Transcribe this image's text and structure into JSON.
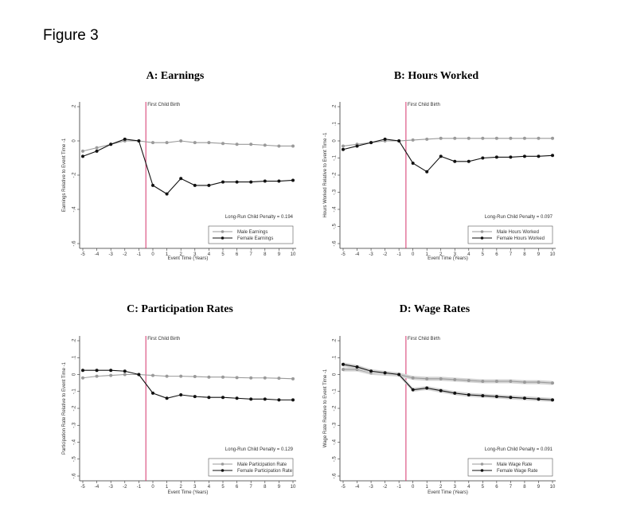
{
  "figure_label": "Figure 3",
  "colors": {
    "male": "#9a9a9a",
    "female": "#111111",
    "event_line": "#d6336c",
    "band": "#d4d4d4"
  },
  "chart_data": [
    {
      "type": "line",
      "title": "A: Earnings",
      "xlabel": "Event Time (Years)",
      "ylabel": "Earnings Relative to Event Time -1",
      "x": [
        -5,
        -4,
        -3,
        -2,
        -1,
        0,
        1,
        2,
        3,
        4,
        5,
        6,
        7,
        8,
        9,
        10
      ],
      "ylim": [
        -0.6,
        0.2
      ],
      "yticks": [
        ".2",
        "0",
        "-.2",
        "-.4",
        "-.6"
      ],
      "event_label": "First Child Birth",
      "penalty_label": "Long-Run Child Penalty = 0.194",
      "series": [
        {
          "name": "Male Earnings",
          "values": [
            -0.06,
            -0.04,
            -0.02,
            0.0,
            0.0,
            -0.01,
            -0.01,
            0.0,
            -0.01,
            -0.01,
            -0.015,
            -0.02,
            -0.02,
            -0.025,
            -0.03,
            -0.03
          ]
        },
        {
          "name": "Female Earnings",
          "values": [
            -0.09,
            -0.06,
            -0.02,
            0.01,
            0.0,
            -0.26,
            -0.31,
            -0.22,
            -0.26,
            -0.26,
            -0.24,
            -0.24,
            -0.24,
            -0.235,
            -0.235,
            -0.23
          ]
        }
      ]
    },
    {
      "type": "line",
      "title": "B: Hours Worked",
      "xlabel": "Event Time (Years)",
      "ylabel": "Hours Worked Relative to Event Time -1",
      "x": [
        -5,
        -4,
        -3,
        -2,
        -1,
        0,
        1,
        2,
        3,
        4,
        5,
        6,
        7,
        8,
        9,
        10
      ],
      "ylim": [
        -0.6,
        0.2
      ],
      "yticks": [
        ".2",
        ".1",
        "0",
        "-.1",
        "-.2",
        "-.3",
        "-.4",
        "-.5",
        "-.6"
      ],
      "event_label": "First Child Birth",
      "penalty_label": "Long-Run Child Penalty = 0.097",
      "series": [
        {
          "name": "Male Hours Worked",
          "values": [
            -0.03,
            -0.02,
            -0.01,
            0.0,
            0.0,
            0.005,
            0.01,
            0.015,
            0.015,
            0.015,
            0.015,
            0.015,
            0.015,
            0.015,
            0.015,
            0.015
          ]
        },
        {
          "name": "Female Hours Worked",
          "values": [
            -0.05,
            -0.03,
            -0.01,
            0.01,
            0.0,
            -0.13,
            -0.18,
            -0.09,
            -0.12,
            -0.12,
            -0.1,
            -0.095,
            -0.095,
            -0.09,
            -0.09,
            -0.085
          ]
        }
      ]
    },
    {
      "type": "line",
      "title": "C: Participation Rates",
      "xlabel": "Event Time (Years)",
      "ylabel": "Participation Rate Relative to Event Time -1",
      "x": [
        -5,
        -4,
        -3,
        -2,
        -1,
        0,
        1,
        2,
        3,
        4,
        5,
        6,
        7,
        8,
        9,
        10
      ],
      "ylim": [
        -0.6,
        0.2
      ],
      "yticks": [
        ".2",
        ".1",
        "0",
        "-.1",
        "-.2",
        "-.3",
        "-.4",
        "-.5",
        "-.6"
      ],
      "event_label": "First Child Birth",
      "penalty_label": "Long-Run Child Penalty = 0.129",
      "series": [
        {
          "name": "Male Participation Rate",
          "values": [
            -0.02,
            -0.01,
            -0.005,
            0.0,
            0.0,
            -0.005,
            -0.01,
            -0.01,
            -0.012,
            -0.015,
            -0.015,
            -0.018,
            -0.02,
            -0.02,
            -0.022,
            -0.025
          ]
        },
        {
          "name": "Female Participation Rate",
          "values": [
            0.025,
            0.025,
            0.025,
            0.02,
            0.0,
            -0.11,
            -0.14,
            -0.12,
            -0.13,
            -0.135,
            -0.135,
            -0.14,
            -0.145,
            -0.145,
            -0.15,
            -0.15
          ]
        }
      ]
    },
    {
      "type": "line",
      "title": "D: Wage Rates",
      "xlabel": "Event Time (Years)",
      "ylabel": "Wage Rate Relative to Event Time -1",
      "x": [
        -5,
        -4,
        -3,
        -2,
        -1,
        0,
        1,
        2,
        3,
        4,
        5,
        6,
        7,
        8,
        9,
        10
      ],
      "ylim": [
        -0.6,
        0.2
      ],
      "yticks": [
        ".2",
        ".1",
        "0",
        "-.1",
        "-.2",
        "-.3",
        "-.4",
        "-.5",
        "-.6"
      ],
      "event_label": "First Child Birth",
      "penalty_label": "Long-Run Child Penalty = 0.091",
      "band": true,
      "series": [
        {
          "name": "Male Wage Rate",
          "values": [
            0.03,
            0.03,
            0.01,
            0.005,
            0.0,
            -0.02,
            -0.025,
            -0.025,
            -0.03,
            -0.035,
            -0.04,
            -0.04,
            -0.04,
            -0.045,
            -0.045,
            -0.05
          ]
        },
        {
          "name": "Female Wage Rate",
          "values": [
            0.06,
            0.045,
            0.02,
            0.01,
            0.0,
            -0.09,
            -0.08,
            -0.095,
            -0.11,
            -0.12,
            -0.125,
            -0.13,
            -0.135,
            -0.14,
            -0.145,
            -0.15
          ]
        }
      ]
    }
  ]
}
